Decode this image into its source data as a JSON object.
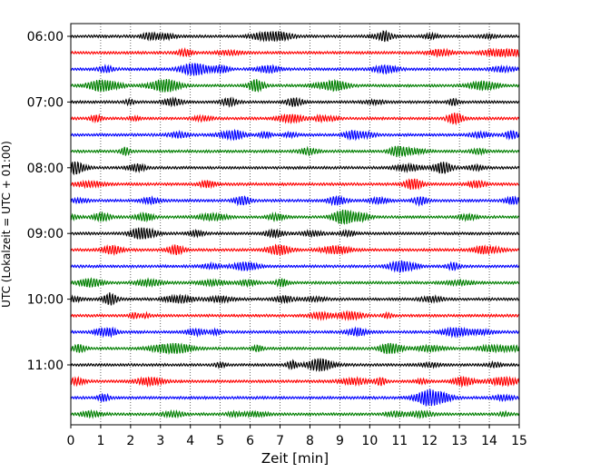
{
  "chart_data": {
    "type": "line",
    "title": "",
    "xlabel": "Zeit  [min]",
    "ylabel": "UTC (Lokalzeit = UTC + 01:00)",
    "xlim": [
      0,
      15
    ],
    "x_ticks": [
      "0",
      "1",
      "2",
      "3",
      "4",
      "5",
      "6",
      "7",
      "8",
      "9",
      "10",
      "11",
      "12",
      "13",
      "14",
      "15"
    ],
    "y_tick_labels": [
      "06:00",
      "07:00",
      "08:00",
      "09:00",
      "10:00",
      "11:00"
    ],
    "grid": "vertical dotted",
    "trace_start": "06:00",
    "trace_interval_min": 15,
    "trace_count": 24,
    "series_colors": [
      "#000000",
      "#ff0000",
      "#0000ff",
      "#007f00"
    ]
  }
}
